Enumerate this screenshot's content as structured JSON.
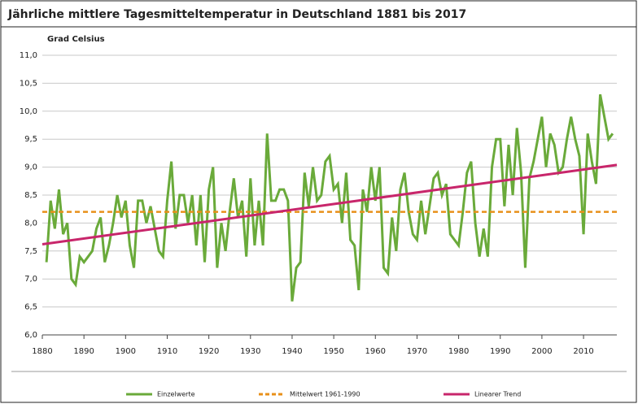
{
  "chart_data": {
    "type": "line",
    "title": "Jährliche mittlere Tagesmitteltemperatur in Deutschland 1881 bis 2017",
    "y_label": "Grad Celsius",
    "xlim": [
      1880,
      2018
    ],
    "xticks": [
      1880,
      1890,
      1900,
      1910,
      1920,
      1930,
      1940,
      1950,
      1960,
      1970,
      1980,
      1990,
      2000,
      2010
    ],
    "ylim": [
      6,
      11
    ],
    "yticks": [
      {
        "value": 6,
        "label": "6,0"
      },
      {
        "value": 6.5,
        "label": "6,5"
      },
      {
        "value": 7,
        "label": "7,0"
      },
      {
        "value": 7.5,
        "label": "7,5"
      },
      {
        "value": 8,
        "label": "8,0"
      },
      {
        "value": 8.5,
        "label": "8,5"
      },
      {
        "value": 9,
        "label": "9,0"
      },
      {
        "value": 9.5,
        "label": "9,5"
      },
      {
        "value": 10,
        "label": "10,0"
      },
      {
        "value": 10.5,
        "label": "10,5"
      },
      {
        "value": 11,
        "label": "11,0"
      }
    ],
    "grid": true,
    "series": [
      {
        "name": "Einzelwerte",
        "color": "#6aaa3a",
        "dash": false,
        "x": [
          1881,
          1882,
          1883,
          1884,
          1885,
          1886,
          1887,
          1888,
          1889,
          1890,
          1891,
          1892,
          1893,
          1894,
          1895,
          1896,
          1897,
          1898,
          1899,
          1900,
          1901,
          1902,
          1903,
          1904,
          1905,
          1906,
          1907,
          1908,
          1909,
          1910,
          1911,
          1912,
          1913,
          1914,
          1915,
          1916,
          1917,
          1918,
          1919,
          1920,
          1921,
          1922,
          1923,
          1924,
          1925,
          1926,
          1927,
          1928,
          1929,
          1930,
          1931,
          1932,
          1933,
          1934,
          1935,
          1936,
          1937,
          1938,
          1939,
          1940,
          1941,
          1942,
          1943,
          1944,
          1945,
          1946,
          1947,
          1948,
          1949,
          1950,
          1951,
          1952,
          1953,
          1954,
          1955,
          1956,
          1957,
          1958,
          1959,
          1960,
          1961,
          1962,
          1963,
          1964,
          1965,
          1966,
          1967,
          1968,
          1969,
          1970,
          1971,
          1972,
          1973,
          1974,
          1975,
          1976,
          1977,
          1978,
          1979,
          1980,
          1981,
          1982,
          1983,
          1984,
          1985,
          1986,
          1987,
          1988,
          1989,
          1990,
          1991,
          1992,
          1993,
          1994,
          1995,
          1996,
          1997,
          1998,
          1999,
          2000,
          2001,
          2002,
          2003,
          2004,
          2005,
          2006,
          2007,
          2008,
          2009,
          2010,
          2011,
          2012,
          2013,
          2014,
          2015,
          2016,
          2017
        ],
        "values": [
          7.3,
          8.4,
          7.9,
          8.6,
          7.8,
          8.0,
          7.0,
          6.9,
          7.4,
          7.3,
          7.4,
          7.5,
          7.9,
          8.1,
          7.3,
          7.6,
          8.0,
          8.5,
          8.1,
          8.4,
          7.6,
          7.2,
          8.4,
          8.4,
          8.0,
          8.3,
          7.9,
          7.5,
          7.4,
          8.4,
          9.1,
          7.9,
          8.5,
          8.5,
          8.0,
          8.5,
          7.6,
          8.5,
          7.3,
          8.6,
          9.0,
          7.2,
          8.0,
          7.5,
          8.2,
          8.8,
          8.1,
          8.4,
          7.4,
          8.8,
          7.6,
          8.4,
          7.6,
          9.6,
          8.4,
          8.4,
          8.6,
          8.6,
          8.4,
          6.6,
          7.2,
          7.3,
          8.9,
          8.3,
          9.0,
          8.4,
          8.5,
          9.1,
          9.2,
          8.6,
          8.7,
          8.0,
          8.9,
          7.7,
          7.6,
          6.8,
          8.6,
          8.2,
          9.0,
          8.4,
          9.0,
          7.2,
          7.1,
          8.1,
          7.5,
          8.6,
          8.9,
          8.2,
          7.8,
          7.7,
          8.4,
          7.8,
          8.3,
          8.8,
          8.9,
          8.5,
          8.7,
          7.8,
          7.7,
          7.6,
          8.2,
          8.9,
          9.1,
          8.0,
          7.4,
          7.9,
          7.4,
          9.0,
          9.5,
          9.5,
          8.3,
          9.4,
          8.5,
          9.7,
          8.9,
          7.2,
          8.8,
          9.1,
          9.5,
          9.9,
          9.0,
          9.6,
          9.4,
          8.9,
          9.0,
          9.5,
          9.9,
          9.5,
          9.2,
          7.8,
          9.6,
          9.1,
          8.7,
          10.3,
          9.9,
          9.5,
          9.6
        ]
      },
      {
        "name": "Mittelwert 1961-1990",
        "color": "#e8901a",
        "dash": true,
        "x": [
          1880,
          2018
        ],
        "values": [
          8.2,
          8.2
        ]
      },
      {
        "name": "Linearer Trend",
        "color": "#c8266b",
        "dash": false,
        "x": [
          1880,
          2018
        ],
        "values": [
          7.62,
          9.04
        ]
      }
    ]
  }
}
